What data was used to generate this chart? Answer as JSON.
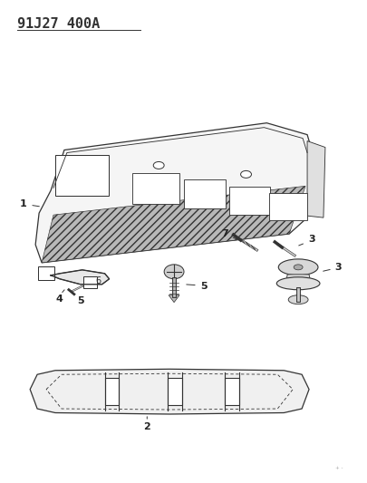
{
  "title": "91J27 400A",
  "bg_color": "#ffffff",
  "line_color": "#333333",
  "label_color": "#222222",
  "title_fontsize": 11,
  "label_fontsize": 8
}
